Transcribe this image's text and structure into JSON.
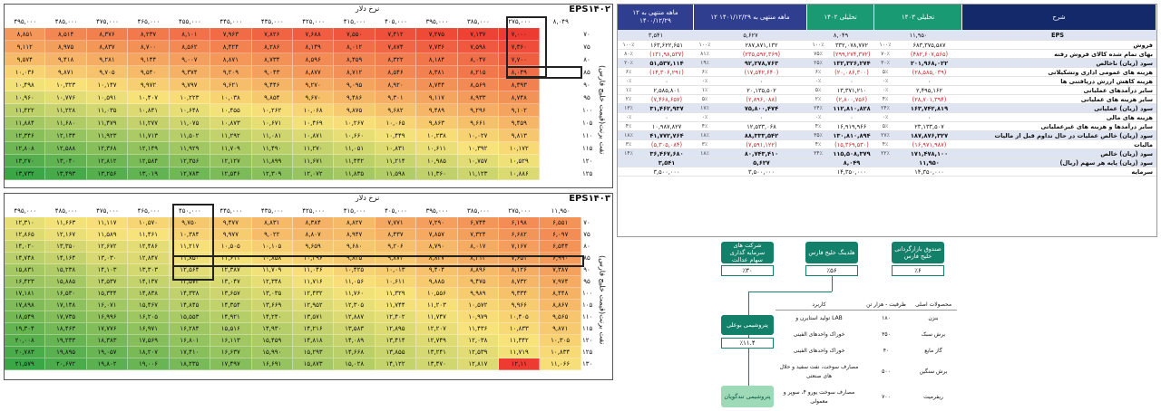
{
  "sensitivity": [
    {
      "title": "EPS۱۴۰۲",
      "axis_label": "نرخ دلار",
      "side_label": "نفت برنت(قیمت خلیج فارس)",
      "columns": [
        "۴۹۵,۰۰۰",
        "۴۸۵,۰۰۰",
        "۴۷۵,۰۰۰",
        "۴۶۵,۰۰۰",
        "۴۵۵,۰۰۰",
        "۴۴۵,۰۰۰",
        "۴۳۵,۰۰۰",
        "۴۲۵,۰۰۰",
        "۴۱۵,۰۰۰",
        "۴۰۵,۰۰۰",
        "۳۹۵,۰۰۰",
        "۳۸۵,۰۰۰",
        "۲۷۵,۰۰۰",
        "۸,۰۴۹"
      ],
      "row_labels": [
        "۷۰",
        "۷۵",
        "۸۰",
        "۸۵",
        "۹۰",
        "۹۵",
        "۱۰۰",
        "۱۰۵",
        "۱۱۰",
        "۱۱۵",
        "۱۲۰",
        "۱۲۵"
      ],
      "rows": [
        [
          "۸,۸۵۱",
          "۸,۵۱۴",
          "۸,۳۷۶",
          "۸,۲۳۷",
          "۸,۱۰۱",
          "۷,۹۶۳",
          "۷,۸۲۶",
          "۷,۶۸۸",
          "۷,۵۵۰",
          "۷,۴۱۲",
          "۷,۲۷۵",
          "۷,۱۳۷",
          "۷,۰۰۰"
        ],
        [
          "۹,۱۱۲",
          "۸,۹۷۵",
          "۸,۸۳۷",
          "۸,۷۰۰",
          "۸,۵۶۲",
          "۸,۴۲۴",
          "۸,۲۸۶",
          "۸,۱۴۹",
          "۸,۰۱۲",
          "۷,۸۷۴",
          "۷,۷۳۶",
          "۷,۵۹۸",
          "۷,۳۶۰"
        ],
        [
          "۹,۵۷۴",
          "۹,۴۱۸",
          "۹,۲۸۱",
          "۹,۱۴۴",
          "۹,۰۰۷",
          "۸,۸۷۱",
          "۸,۷۳۴",
          "۸,۵۹۶",
          "۸,۴۵۹",
          "۸,۳۲۲",
          "۸,۱۸۴",
          "۸,۰۴۷",
          "۷,۷۰۰"
        ],
        [
          "۱۰,۰۳۶",
          "۹,۸۷۱",
          "۹,۷۰۵",
          "۹,۵۴۰",
          "۹,۳۷۴",
          "۹,۲۰۹",
          "۹,۰۴۳",
          "۸,۸۷۷",
          "۸,۷۱۲",
          "۸,۵۴۶",
          "۸,۳۸۱",
          "۸,۲۱۵",
          "۸,۰۴۹"
        ],
        [
          "۱۰,۴۹۸",
          "۱۰,۳۲۳",
          "۱۰,۱۴۷",
          "۹,۹۷۲",
          "۹,۷۹۷",
          "۹,۶۲۱",
          "۹,۴۴۶",
          "۹,۲۷۰",
          "۹,۰۹۵",
          "۸,۹۲۰",
          "۸,۷۴۴",
          "۸,۵۶۹",
          "۸,۳۹۳"
        ],
        [
          "۱۰,۹۶۰",
          "۱۰,۷۷۶",
          "۱۰,۵۹۱",
          "۱۰,۴۰۷",
          "۱۰,۲۲۳",
          "۱۰,۰۳۸",
          "۹,۸۵۴",
          "۹,۶۷۰",
          "۹,۴۸۶",
          "۹,۳۰۱",
          "۹,۱۱۷",
          "۸,۹۳۳",
          "۸,۷۴۸"
        ],
        [
          "۱۱,۴۲۲",
          "۱۱,۲۲۸",
          "۱۱,۰۳۵",
          "۱۰,۸۴۱",
          "۱۰,۶۴۸",
          "۱۰,۴۵۵",
          "۱۰,۲۶۲",
          "۱۰,۰۶۸",
          "۹,۸۷۵",
          "۹,۶۸۲",
          "۹,۴۸۹",
          "۹,۲۹۶",
          "۹,۱۰۲"
        ],
        [
          "۱۱,۸۸۴",
          "۱۱,۶۸۰",
          "۱۱,۴۷۹",
          "۱۱,۲۷۷",
          "۱۱,۰۷۵",
          "۱۰,۸۷۳",
          "۱۰,۶۷۱",
          "۱۰,۴۶۹",
          "۱۰,۲۶۷",
          "۱۰,۰۶۵",
          "۹,۸۶۳",
          "۹,۶۶۱",
          "۹,۴۵۹"
        ],
        [
          "۱۲,۳۴۶",
          "۱۲,۱۳۴",
          "۱۱,۹۲۳",
          "۱۱,۷۱۳",
          "۱۱,۵۰۲",
          "۱۱,۲۹۲",
          "۱۱,۰۸۱",
          "۱۰,۸۷۱",
          "۱۰,۶۶۰",
          "۱۰,۴۴۹",
          "۱۰,۲۳۸",
          "۱۰,۰۲۷",
          "۹,۸۱۳"
        ],
        [
          "۱۲,۸۰۸",
          "۱۲,۵۸۸",
          "۱۲,۳۶۸",
          "۱۲,۱۴۹",
          "۱۱,۹۲۹",
          "۱۱,۷۰۹",
          "۱۱,۴۹۰",
          "۱۱,۲۷۰",
          "۱۱,۰۵۱",
          "۱۰,۸۳۱",
          "۱۰,۶۱۱",
          "۱۰,۳۹۲",
          "۱۰,۱۷۲"
        ],
        [
          "۱۳,۲۷۰",
          "۱۳,۰۴۰",
          "۱۲,۸۱۲",
          "۱۲,۵۸۴",
          "۱۲,۳۵۶",
          "۱۲,۱۲۷",
          "۱۱,۸۹۹",
          "۱۱,۶۷۱",
          "۱۱,۴۴۲",
          "۱۱,۲۱۴",
          "۱۰,۹۸۵",
          "۱۰,۷۵۷",
          "۱۰,۵۲۹"
        ],
        [
          "۱۳,۷۳۲",
          "۱۳,۴۹۳",
          "۱۳,۲۵۶",
          "۱۳,۰۱۹",
          "۱۲,۷۸۳",
          "۱۲,۵۴۶",
          "۱۲,۳۰۹",
          "۱۲,۰۷۲",
          "۱۱,۸۳۵",
          "۱۱,۵۹۸",
          "۱۱,۳۶۰",
          "۱۱,۱۲۳",
          "۱۰,۸۸۶"
        ]
      ]
    },
    {
      "title": "EPS۱۴۰۳",
      "axis_label": "نرخ دلار",
      "side_label": "نفت برنت(قیمت خلیج فارس)",
      "columns": [
        "۴۹۵,۰۰۰",
        "۴۸۵,۰۰۰",
        "۴۷۵,۰۰۰",
        "۴۶۵,۰۰۰",
        "۴۵۰,۰۰۰",
        "۴۴۵,۰۰۰",
        "۴۳۵,۰۰۰",
        "۴۲۵,۰۰۰",
        "۴۱۵,۰۰۰",
        "۴۰۵,۰۰۰",
        "۳۹۵,۰۰۰",
        "۳۸۵,۰۰۰",
        "۲۷۵,۰۰۰",
        "۱۱,۹۵۰"
      ],
      "row_labels": [
        "۷۰",
        "۷۵",
        "۸۰",
        "۸۵",
        "۹۰",
        "۹۵",
        "۱۰۰",
        "۱۰۵",
        "۱۱۰",
        "۱۱۵",
        "۱۲۰",
        "۱۲۵",
        "۱۳۰"
      ],
      "rows": [
        [
          "۱۲,۳۱۰",
          "۱۱,۶۶۳",
          "۱۱,۱۱۷",
          "۱۰,۵۷۰",
          "۹,۷۵۰",
          "۹,۴۷۷",
          "۸,۸۳۱",
          "۸,۳۸۴",
          "۸,۸۲۷",
          "۷,۷۷۱",
          "۷,۲۹۰",
          "۶,۷۴۴",
          "۶,۱۹۸",
          "۶,۵۵۱"
        ],
        [
          "۱۲,۸۶۵",
          "۱۲,۱۶۷",
          "۱۱,۵۸۹",
          "۱۱,۴۶۱",
          "۱۰,۳۸۴",
          "۹,۹۷۷",
          "۹,۰۲۲",
          "۸,۸۰۷",
          "۸,۹۴۷",
          "۸,۴۳۷",
          "۷,۸۵۷",
          "۷,۳۲۴",
          "۶,۶۸۲",
          "۶,۰۹۷"
        ],
        [
          "۱۴,۰۲۰",
          "۱۳,۳۵۰",
          "۱۲,۶۷۲",
          "۱۲,۴۸۶",
          "۱۱,۲۱۷",
          "۱۰,۵۰۵",
          "۱۰,۱۰۵",
          "۹,۶۵۹",
          "۹,۶۸۰",
          "۹,۲۰۶",
          "۸,۷۹۰",
          "۸,۰۱۷",
          "۷,۱۶۷",
          "۶,۵۴۴"
        ],
        [
          "۱۴,۷۴۸",
          "۱۴,۱۶۴",
          "۱۳,۰۳۰",
          "۱۲,۸۴۷",
          "۱۱,۸۵۰",
          "۱۱,۶۱۱",
          "۱۰,۸۵۸",
          "۱۰,۳۹۶",
          "۹,۸۳۵",
          "۹,۸۷۴",
          "۸,۸۳۷",
          "۸,۲۱۲",
          "۷,۶۵۱",
          "۶,۹۹۰"
        ],
        [
          "۱۵,۸۳۱",
          "۱۵,۲۳۸",
          "۱۴,۱۰۳",
          "۱۳,۳۰۳",
          "۱۲,۵۶۴",
          "۱۲,۳۸۷",
          "۱۱,۷۰۹",
          "۱۱,۰۴۶",
          "۱۰,۴۲۵",
          "۱۰,۰۱۳",
          "۹,۴۰۴",
          "۸,۸۹۶",
          "۸,۱۲۶",
          "۷,۳۸۷"
        ],
        [
          "۱۶,۴۲۳",
          "۱۵,۸۸۵",
          "۱۴,۵۳۷",
          "۱۴,۱۳۷",
          "۱۳,۵۷۳",
          "۱۳,۰۴۷",
          "۱۲,۳۴۸",
          "۱۱,۷۱۶",
          "۱۱,۰۵۶",
          "۱۰,۶۱۱",
          "۹,۸۸۵",
          "۹,۴۷۵",
          "۸,۷۳۲",
          "۷,۹۷۴"
        ],
        [
          "۱۷,۱۸۱",
          "۱۶,۵۳۰",
          "۱۵,۳۴۴",
          "۱۴,۸۳۸",
          "۱۴,۳۳۸",
          "۱۳,۶۵۷",
          "۱۳,۰۳۵",
          "۱۲,۴۳۲",
          "۱۱,۷۶۰",
          "۱۱,۳۲۹",
          "۱۰,۵۵۶",
          "۹,۹۸۹",
          "۹,۳۳۴",
          "۸,۴۴۸"
        ],
        [
          "۱۷,۸۹۸",
          "۱۷,۱۴۸",
          "۱۶,۰۷۱",
          "۱۵,۴۶۷",
          "۱۴,۸۴۵",
          "۱۴,۳۵۴",
          "۱۳,۶۶۹",
          "۱۲,۹۵۲",
          "۱۲,۳۰۵",
          "۱۱,۷۴۴",
          "۱۱,۲۰۳",
          "۱۰,۵۷۲",
          "۹,۹۶۶",
          "۸,۸۶۷"
        ],
        [
          "۱۸,۵۴۹",
          "۱۷,۷۳۵",
          "۱۶,۹۹۶",
          "۱۶,۲۰۵",
          "۱۵,۵۵۳",
          "۱۴,۹۲۱",
          "۱۴,۲۴۰",
          "۱۳,۵۷۱",
          "۱۲,۸۸۷",
          "۱۲,۴۰۲",
          "۱۱,۷۴۷",
          "۱۰,۹۷۹",
          "۱۰,۴۰۵",
          "۹,۵۶۵"
        ],
        [
          "۱۹,۳۰۴",
          "۱۸,۴۶۳",
          "۱۷,۷۷۶",
          "۱۶,۹۷۱",
          "۱۶,۲۸۴",
          "۱۵,۵۱۶",
          "۱۴,۹۳۰",
          "۱۴,۲۱۶",
          "۱۳,۵۸۳",
          "۱۲,۸۹۵",
          "۱۲,۲۰۷",
          "۱۱,۴۳۶",
          "۱۰,۸۳۳",
          "۹,۸۷۱"
        ],
        [
          "۲۰,۰۰۸",
          "۱۹,۲۳۳",
          "۱۸,۳۸۳",
          "۱۷,۵۶۹",
          "۱۶,۸۰۱",
          "۱۶,۱۱۳",
          "۱۵,۴۵۹",
          "۱۴,۸۱۸",
          "۱۴,۰۸۹",
          "۱۳,۴۱۴",
          "۱۲,۷۴۹",
          "۱۲,۰۳۸",
          "۱۱,۳۴۲",
          "۱۰,۳۰۵"
        ],
        [
          "۲۰,۷۸۳",
          "۱۹,۸۹۵",
          "۱۹,۰۵۷",
          "۱۸,۲۰۷",
          "۱۷,۴۱۰",
          "۱۶,۶۳۷",
          "۱۵,۹۹۰",
          "۱۵,۲۹۳",
          "۱۴,۶۶۸",
          "۱۳,۸۵۵",
          "۱۳,۲۴۱",
          "۱۲,۵۳۹",
          "۱۱,۷۱۹",
          "۱۰,۸۳۴"
        ],
        [
          "۲۱,۵۷۹",
          "۲۰,۶۷۲",
          "۱۹,۸۰۲",
          "۱۹,۰۰۶",
          "۱۸,۲۳۵",
          "۱۷,۴۹۷",
          "۱۶,۶۹۱",
          "۱۵,۸۷۳",
          "۱۵,۰۲۸",
          "۱۴,۱۲۲",
          "۱۳,۴۷۰",
          "۱۲,۸۱۷",
          "۱۲,۱۱",
          "۱۱,۰۶۶"
        ]
      ]
    }
  ],
  "statement": {
    "headers": {
      "col1": "۱۲ ماهه منتهی به ۱۴۰۰/۱۲/۲۹",
      "col2": "۱۲ ماهه منتهی به ۱۴۰۱/۱۲/۲۹",
      "col3": "تحلیلی ۱۴۰۲",
      "col4": "تحلیلی ۱۴۰۳",
      "label": "شرح"
    },
    "eps_row": {
      "label": "EPS",
      "c1": "۳,۵۴۱",
      "c2": "۵,۶۲۷",
      "c3": "۸,۰۴۹",
      "c4": "۱۱,۹۵۰"
    },
    "rows": [
      {
        "label": "فروش",
        "p1": "۱۰۰٪",
        "v1": "۱۶۳,۶۲۲,۶۵۱",
        "p2": "۱۰۰٪",
        "v2": "۲۸۷,۸۷۱,۱۳۲",
        "p3": "۱۰۰٪",
        "v3": "۳۳۲,۰۷۸,۷۷۲",
        "p4": "۱۰۰٪",
        "v4": "۶۸۳,۳۷۵,۵۸۷",
        "sub": false
      },
      {
        "label": "بهای تمام شده کالای فروش رفته",
        "p1": "۸۰٪",
        "v1": "(۱۳۱,۹۸,۵۳۷)",
        "p2": "۸۱٪",
        "v2": "(۲۳۵,۵۹۲,۳۶۹)",
        "p3": "۷۵٪",
        "v3": "(۲۹۹,۲۷۴,۳۷۲)",
        "p4": "۷۰٪",
        "v4": "(۴۸۲,۶۰۷,۵۶۵)",
        "sub": false
      },
      {
        "label": "سود (زیان) ناخالص",
        "p1": "۲۰٪",
        "v1": "۵۱,۵۳۷,۱۱۴",
        "p2": "۱۹٪",
        "v2": "۹۲,۲۷۸,۷۶۳",
        "p3": "۲۵٪",
        "v3": "۱۳۲,۳۲۶,۲۷۴",
        "p4": "۳۰٪",
        "v4": "۲۰۱,۹۶۸,۰۲۲",
        "sub": true
      },
      {
        "label": "هزینه های عمومی اداری وتشکیلاتی",
        "p1": "۶٪",
        "v1": "(۱۴,۳۰۶,۲۹۱)",
        "p2": "۶٪",
        "v2": "(۱۷,۵۴۲,۶۴۰)",
        "p3": "۶٪",
        "v3": "(۲۰,۰۸۶,۳۰۰)",
        "p4": "۵٪",
        "v4": "(۲۸,۵۸۵,۰۳۹)",
        "sub": false
      },
      {
        "label": "هزینه کاهش ارزش دریافتنی ها",
        "p1": "۰٪",
        "v1": "۰",
        "p2": "۰٪",
        "v2": "۰",
        "p3": "۰٪",
        "v3": "۰",
        "p4": "۰٪",
        "v4": "۰",
        "sub": false
      },
      {
        "label": "سایر درآمدهای عملیاتی",
        "p1": "۱٪",
        "v1": "۲,۵۸۵,۸۰۱",
        "p2": "۱٪",
        "v2": "۲۰,۱۳۵,۵۰۲",
        "p3": "۵٪",
        "v3": "۱۳,۳۷۱,۲۱۰",
        "p4": "۰٪",
        "v4": "۲,۴۹۵,۱۶۲",
        "sub": false
      },
      {
        "label": "سایر هزینه های عملیاتی",
        "p1": "۲٪",
        "v1": "(۷,۴۶۸,۶۵۷)",
        "p2": "۵٪",
        "v2": "(۲,۸۹۶,۰۸۸)",
        "p3": "۲٪",
        "v3": "(۲,۸۰۰,۷۵۶)",
        "p4": "۴٪",
        "v4": "(۲۸,۷۰۱,۳۹۴)",
        "sub": false
      },
      {
        "label": "سود (زیان) عملیاتی",
        "p1": "۱۳٪",
        "v1": "۳۱,۴۶۲,۹۳۷",
        "p2": "۱۷٪",
        "v2": "۷۵,۸۰۰,۴۷۴",
        "p3": "۲۴٪",
        "v3": "۱۱۲,۸۱۰,۸۲۸",
        "p4": "۲۴٪",
        "v4": "۱۶۳,۷۴۲,۸۱۹",
        "sub": true
      },
      {
        "label": "هزینه های مالی",
        "p1": "۰٪",
        "v1": "۰",
        "p2": "۰٪",
        "v2": "۰",
        "p3": "۰٪",
        "v3": "۰",
        "p4": "۰٪",
        "v4": "۰",
        "sub": false
      },
      {
        "label": "سایر درآمدها و هزینه های غیرعملیاتی",
        "p1": "۴٪",
        "v1": "۱۰,۹۸۷,۸۲۷",
        "p2": "۴٪",
        "v2": "۱۲,۵۳۳,۰۶۸",
        "p3": "۴٪",
        "v3": "۱۶,۹۱۹,۹۶۶",
        "p4": "۵٪",
        "v4": "۲۳,۱۳۳,۵۰۷",
        "sub": false
      },
      {
        "label": "سود (زیان) خالص عملیات در حال تداوم قبل از مالیات",
        "p1": "۱۸٪",
        "v1": "۴۱,۷۷۲,۷۶۴",
        "p2": "۱۸٪",
        "v2": "۸۸,۳۳۳,۵۴۲",
        "p3": "۳۵٪",
        "v3": "۱۳۰,۸۱۰,۸۹۴",
        "p4": "۲۷٪",
        "v4": "۱۸۷,۸۷۶,۳۲۷",
        "sub": true
      },
      {
        "label": "مالیات",
        "p1": "۳٪",
        "v1": "(۵,۳۰۵,۰۸۴)",
        "p2": "۳٪",
        "v2": "(۷,۵۹۱,۱۲۲)",
        "p3": "۴٪",
        "v3": "(۱۵,۳۶۹,۵۳۰)",
        "p4": "۴٪",
        "v4": "(۱۶,۹۷۱,۹۸۷)",
        "sub": false
      },
      {
        "label": "سود (زیان) خالص",
        "p1": "۱۴٪",
        "v1": "۳۶,۴۶۷,۶۸۰",
        "p2": "۱۸٪",
        "v2": "۸۰,۷۴۳,۴۱۰",
        "p3": "۳۴٪",
        "v3": "۱۱۵,۵۰۸,۳۷۹",
        "p4": "۲۲٪",
        "v4": "۱۷۱,۴۷۸,۱۰۰",
        "sub": true
      },
      {
        "label": "سود (زیان) پایه هر سهم (ریال)",
        "p1": "",
        "v1": "۳,۵۴۱",
        "p2": "",
        "v2": "۵,۶۲۷",
        "p3": "",
        "v3": "۸,۰۴۹",
        "p4": "",
        "v4": "۱۱,۹۵۰",
        "sub": true
      },
      {
        "label": "سرمایه",
        "p1": "",
        "v1": "۳,۵۰۰,۰۰۰",
        "p2": "",
        "v2": "۳,۵۰۰,۰۰۰",
        "p3": "",
        "v3": "۱۴,۳۵۰,۰۰۰",
        "p4": "",
        "v4": "۱۴,۳۵۰,۰۰۰",
        "sub": false
      }
    ]
  },
  "holding": {
    "shareholders": [
      {
        "name": "شرکت های سرمایه گذاری سهام عدالت",
        "pct": "٪۳۰"
      },
      {
        "name": "هلدینگ خلیج فارس",
        "pct": "٪۵۶"
      },
      {
        "name": "صندوق بازارگردانی خلیج فارس",
        "pct": "٪۶"
      }
    ],
    "company": "پتروشیمی بوعلی",
    "subsidiary": {
      "name": "پتروشیمی تندگویان",
      "pct": "٪۱۱.۴"
    },
    "products_header": {
      "product": "محصولات اصلی",
      "capacity": "ظرفیت - هزار تن",
      "usage": "کاربرد"
    },
    "products": [
      {
        "product": "بنزن",
        "capacity": "۱۸۰",
        "usage": "تولید استایرن و LAB"
      },
      {
        "product": "برش سبک",
        "capacity": "۳۵۰",
        "usage": "خوراک واحدهای الفینی"
      },
      {
        "product": "گاز مایع",
        "capacity": "۴۰",
        "usage": "خوراک واحدهای الفینی"
      },
      {
        "product": "برش سنگین",
        "capacity": "۵۰۰",
        "usage": "مصارف سوخت، نفت سفید و حلال های صنعتی"
      },
      {
        "product": "ریفرمیت",
        "capacity": "۷۰۰",
        "usage": "مصارف سوخت یورو ۴، سوپر و معمولی"
      }
    ]
  },
  "colors": {
    "header_blue": "#2f3e8f",
    "header_green": "#1a9a72",
    "header_navy": "#14296a",
    "diagram_green": "#13806a",
    "heat_low": "#ee3b32",
    "heat_mid": "#f8e37a",
    "heat_high": "#3aa646"
  }
}
